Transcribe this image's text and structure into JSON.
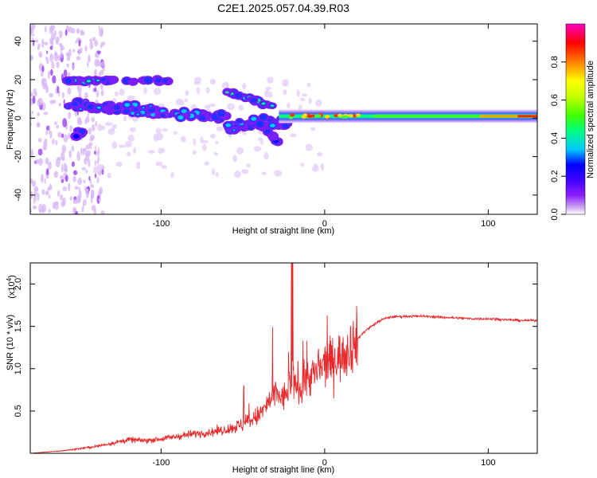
{
  "title": "C2E1.2025.057.04.39.R03",
  "colors": {
    "snr_line": "#e8282a",
    "axis": "#000000"
  },
  "chart_data": [
    {
      "type": "heatmap",
      "xlabel": "Height of straight line (km)",
      "ylabel": "Frequency (Hz)",
      "xlim": [
        -180,
        130
      ],
      "ylim": [
        -50,
        49
      ],
      "xticks": [
        -100,
        0,
        100
      ],
      "xtick_labels": [
        "-100",
        "0",
        "100"
      ],
      "yticks": [
        -40,
        -20,
        0,
        20,
        40
      ],
      "ytick_labels": [
        "-40",
        "-20",
        "0",
        "20",
        "40"
      ],
      "colorbar": {
        "label": "Normalized spectral amplitude",
        "range": [
          0,
          1
        ],
        "ticks": [
          0.0,
          0.2,
          0.4,
          0.6,
          0.8
        ],
        "tick_labels": [
          "0.0",
          "0.2",
          "0.4",
          "0.6",
          "0.8"
        ],
        "colormap": [
          "#ffffff",
          "#c8a0f0",
          "#8c1eff",
          "#4000ff",
          "#0000ff",
          "#00c8ff",
          "#00ff80",
          "#40ff00",
          "#c8ff00",
          "#ffff00",
          "#ff8000",
          "#ff0000",
          "#ff00c0"
        ]
      },
      "features": [
        {
          "name": "",
          "x_range": [
            -160,
            -130
          ],
          "frequency": 20,
          "amplitude": 0.3
        },
        {
          "name": "",
          "x_range": [
            -155,
            -20
          ],
          "frequency": 5,
          "amplitude": 0.35
        },
        {
          "name": "",
          "x_range": [
            0,
            130
          ],
          "frequency": 1,
          "amplitude": 0.9
        }
      ]
    },
    {
      "type": "line",
      "xlabel": "Height of straight line (km)",
      "ylabel": "SNR (10 * v/v)",
      "y_multiplier": "(x10",
      "y_multiplier_exp": "4",
      "y_multiplier_close": ")",
      "xlim": [
        -180,
        130
      ],
      "ylim": [
        0,
        22500
      ],
      "xticks": [
        -100,
        0,
        100
      ],
      "xtick_labels": [
        "-100",
        "0",
        "100"
      ],
      "yticks": [
        5000,
        10000,
        15000,
        20000
      ],
      "ytick_labels": [
        "0.5",
        "1.0",
        "1.5",
        "2.0"
      ],
      "series": [
        {
          "name": "",
          "x": [
            -180,
            -160,
            -140,
            -130,
            -120,
            -110,
            -100,
            -90,
            -80,
            -70,
            -60,
            -50,
            -40,
            -35,
            -30,
            -25,
            -20,
            -15,
            -10,
            -5,
            0,
            5,
            10,
            15,
            20,
            25,
            30,
            35,
            40,
            50,
            60,
            70,
            80,
            90,
            100,
            110,
            120,
            130
          ],
          "y": [
            0,
            300,
            800,
            1200,
            1600,
            1500,
            1700,
            2000,
            2300,
            2500,
            2800,
            3400,
            4500,
            5800,
            7000,
            6500,
            8500,
            8000,
            9000,
            9500,
            10500,
            11000,
            11500,
            12500,
            13500,
            14500,
            15200,
            15800,
            16100,
            16200,
            16200,
            16100,
            16000,
            15900,
            15900,
            15800,
            15700,
            15700
          ]
        }
      ]
    }
  ]
}
